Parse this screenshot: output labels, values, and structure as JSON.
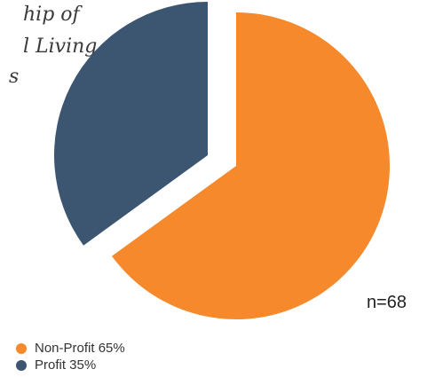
{
  "chart_data": {
    "type": "pie",
    "title_lines": [
      "hip of",
      "l Living",
      "s"
    ],
    "slices": [
      {
        "label": "Non-Profit",
        "value": 65,
        "display": "Non-Profit 65%",
        "color": "#f5892c"
      },
      {
        "label": "Profit",
        "value": 35,
        "display": "Profit 35%",
        "color": "#3c5672"
      }
    ],
    "annotation": "n=68",
    "legend_position": "bottom-left"
  }
}
